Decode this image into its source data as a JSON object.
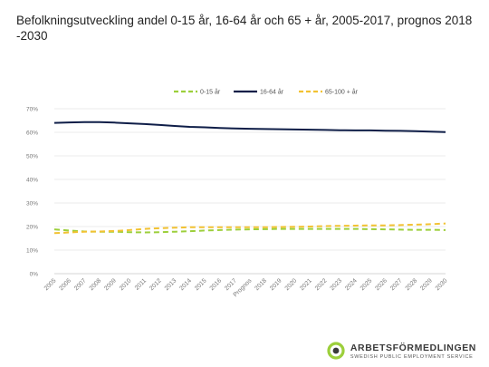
{
  "page": {
    "title": "Befolkningsutveckling andel 0-15 år, 16-64 år och 65 + år, 2005-2017, prognos 2018 -2030"
  },
  "brand": {
    "name": "ARBETSFÖRMEDLINGEN",
    "subtitle": "SWEDISH PUBLIC EMPLOYMENT SERVICE",
    "icon": "arbetsformedlingen-logo-icon",
    "color": "#9ccf3b"
  },
  "chart_data": {
    "type": "line",
    "title": "Befolkningsutveckling andel 0-15 år, 16-64 år och 65 + år, 2005-2017, prognos 2018 -2030",
    "xlabel": "",
    "ylabel": "",
    "categories": [
      "2005",
      "2006",
      "2007",
      "2008",
      "2009",
      "2010",
      "2011",
      "2012",
      "2013",
      "2014",
      "2015",
      "2016",
      "2017",
      "Prognos",
      "2018",
      "2019",
      "2020",
      "2021",
      "2022",
      "2023",
      "2024",
      "2025",
      "2026",
      "2027",
      "2028",
      "2029",
      "2030"
    ],
    "ylim": [
      0,
      70
    ],
    "yticks": [
      0,
      10,
      20,
      30,
      40,
      50,
      60,
      70
    ],
    "ytick_labels": [
      "0%",
      "10%",
      "20%",
      "30%",
      "40%",
      "50%",
      "60%",
      "70%"
    ],
    "grid": true,
    "legend": "top",
    "series": [
      {
        "name": "0-15 år",
        "color": "#9ccf3b",
        "dashed": true,
        "values": [
          18.8,
          18.3,
          17.9,
          17.8,
          17.8,
          17.6,
          17.5,
          17.6,
          17.8,
          18.0,
          18.3,
          18.5,
          18.7,
          18.8,
          18.9,
          19.0,
          19.0,
          19.0,
          19.0,
          19.0,
          19.0,
          18.9,
          18.8,
          18.7,
          18.6,
          18.6,
          18.5
        ]
      },
      {
        "name": "16-64 år",
        "color": "#0f1e48",
        "dashed": false,
        "values": [
          64.0,
          64.2,
          64.3,
          64.3,
          64.1,
          63.8,
          63.5,
          63.1,
          62.7,
          62.3,
          62.1,
          61.8,
          61.6,
          61.5,
          61.4,
          61.3,
          61.2,
          61.1,
          61.0,
          60.9,
          60.8,
          60.8,
          60.7,
          60.6,
          60.5,
          60.3,
          60.1
        ]
      },
      {
        "name": "65-100 + år",
        "color": "#f2c232",
        "dashed": true,
        "values": [
          17.2,
          17.5,
          17.8,
          17.9,
          18.1,
          18.5,
          19.0,
          19.3,
          19.5,
          19.7,
          19.7,
          19.7,
          19.7,
          19.7,
          19.7,
          19.8,
          19.9,
          20.0,
          20.2,
          20.3,
          20.4,
          20.5,
          20.5,
          20.6,
          20.8,
          21.0,
          21.3
        ]
      }
    ]
  }
}
